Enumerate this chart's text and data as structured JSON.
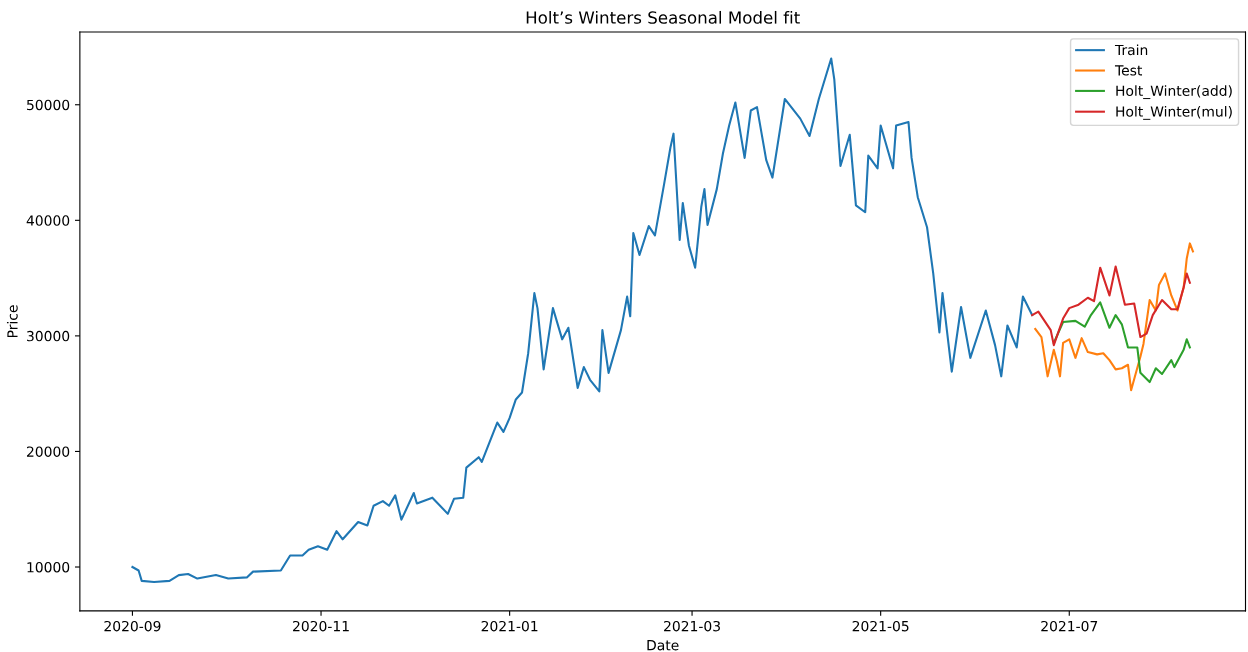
{
  "chart_data": {
    "type": "line",
    "title": "Holt’s Winters Seasonal Model fit",
    "xlabel": "Date",
    "ylabel": "Price",
    "xlim": [
      "2020-08-15",
      "2021-08-27"
    ],
    "ylim": [
      6200,
      56300
    ],
    "xticks": [
      "2020-09",
      "2020-11",
      "2021-01",
      "2021-03",
      "2021-05",
      "2021-07"
    ],
    "yticks": [
      10000,
      20000,
      30000,
      40000,
      50000
    ],
    "legend": "top right",
    "grid": false,
    "series": [
      {
        "name": "Train",
        "color": "#1f77b4",
        "x": [
          "2020-09-01",
          "2020-09-03",
          "2020-09-04",
          "2020-09-08",
          "2020-09-13",
          "2020-09-16",
          "2020-09-19",
          "2020-09-22",
          "2020-09-28",
          "2020-10-02",
          "2020-10-08",
          "2020-10-10",
          "2020-10-19",
          "2020-10-22",
          "2020-10-26",
          "2020-10-28",
          "2020-10-31",
          "2020-11-03",
          "2020-11-06",
          "2020-11-08",
          "2020-11-13",
          "2020-11-16",
          "2020-11-18",
          "2020-11-21",
          "2020-11-23",
          "2020-11-25",
          "2020-11-27",
          "2020-12-01",
          "2020-12-02",
          "2020-12-07",
          "2020-12-12",
          "2020-12-14",
          "2020-12-17",
          "2020-12-18",
          "2020-12-22",
          "2020-12-23",
          "2020-12-28",
          "2020-12-30",
          "2021-01-01",
          "2021-01-03",
          "2021-01-05",
          "2021-01-07",
          "2021-01-09",
          "2021-01-10",
          "2021-01-12",
          "2021-01-15",
          "2021-01-18",
          "2021-01-20",
          "2021-01-23",
          "2021-01-25",
          "2021-01-27",
          "2021-01-30",
          "2021-01-31",
          "2021-02-02",
          "2021-02-06",
          "2021-02-08",
          "2021-02-09",
          "2021-02-10",
          "2021-02-12",
          "2021-02-15",
          "2021-02-17",
          "2021-02-20",
          "2021-02-22",
          "2021-02-23",
          "2021-02-25",
          "2021-02-26",
          "2021-02-28",
          "2021-03-02",
          "2021-03-04",
          "2021-03-05",
          "2021-03-06",
          "2021-03-09",
          "2021-03-11",
          "2021-03-13",
          "2021-03-15",
          "2021-03-18",
          "2021-03-20",
          "2021-03-22",
          "2021-03-25",
          "2021-03-27",
          "2021-03-31",
          "2021-04-05",
          "2021-04-08",
          "2021-04-11",
          "2021-04-15",
          "2021-04-16",
          "2021-04-18",
          "2021-04-21",
          "2021-04-23",
          "2021-04-26",
          "2021-04-27",
          "2021-04-30",
          "2021-05-01",
          "2021-05-05",
          "2021-05-06",
          "2021-05-10",
          "2021-05-11",
          "2021-05-13",
          "2021-05-16",
          "2021-05-18",
          "2021-05-20",
          "2021-05-21",
          "2021-05-24",
          "2021-05-27",
          "2021-05-30",
          "2021-06-04",
          "2021-06-07",
          "2021-06-09",
          "2021-06-11",
          "2021-06-14",
          "2021-06-16",
          "2021-06-19"
        ],
        "values": [
          10000,
          9700,
          8800,
          8700,
          8800,
          9300,
          9400,
          9000,
          9300,
          9000,
          9100,
          9600,
          9700,
          11000,
          11000,
          11500,
          11800,
          11500,
          13100,
          12400,
          13900,
          13600,
          15300,
          15700,
          15300,
          16200,
          14100,
          16400,
          15500,
          16000,
          14600,
          15900,
          16000,
          18600,
          19500,
          19100,
          22500,
          21700,
          22900,
          24500,
          25100,
          28500,
          33700,
          32400,
          27100,
          32400,
          29700,
          30700,
          25500,
          27300,
          26200,
          25200,
          30500,
          26800,
          30500,
          33400,
          31700,
          38900,
          37000,
          39500,
          38700,
          43200,
          46300,
          47500,
          38300,
          41500,
          37800,
          35900,
          41200,
          42700,
          39600,
          42700,
          45800,
          48200,
          50200,
          45400,
          49500,
          49800,
          45200,
          43700,
          50500,
          48800,
          47300,
          50500,
          54000,
          52200,
          44700,
          47400,
          41300,
          40700,
          45600,
          44500,
          48200,
          44500,
          48200,
          48500,
          45400,
          42000,
          39400,
          35400,
          30300,
          33700,
          26900,
          32500,
          28100,
          32200,
          29200,
          26500,
          30900,
          29000,
          33400,
          31800
        ]
      },
      {
        "name": "Test",
        "color": "#ff7f0e",
        "x": [
          "2021-06-20",
          "2021-06-22",
          "2021-06-24",
          "2021-06-26",
          "2021-06-27",
          "2021-06-28",
          "2021-06-29",
          "2021-07-01",
          "2021-07-03",
          "2021-07-05",
          "2021-07-07",
          "2021-07-10",
          "2021-07-12",
          "2021-07-14",
          "2021-07-16",
          "2021-07-18",
          "2021-07-20",
          "2021-07-21",
          "2021-07-24",
          "2021-07-25",
          "2021-07-27",
          "2021-07-29",
          "2021-07-30",
          "2021-08-01",
          "2021-08-03",
          "2021-08-05",
          "2021-08-07",
          "2021-08-08",
          "2021-08-09",
          "2021-08-10"
        ],
        "values": [
          30600,
          29900,
          26500,
          28800,
          27800,
          26500,
          29400,
          29700,
          28100,
          29800,
          28600,
          28400,
          28500,
          27900,
          27100,
          27200,
          27500,
          25300,
          28200,
          29300,
          33100,
          32200,
          34400,
          35400,
          33500,
          32200,
          34200,
          36700,
          38000,
          37300
        ]
      },
      {
        "name": "Holt_Winter(add)",
        "color": "#2ca02c",
        "x": [
          "2021-06-26",
          "2021-06-29",
          "2021-07-03",
          "2021-07-06",
          "2021-07-08",
          "2021-07-11",
          "2021-07-14",
          "2021-07-16",
          "2021-07-18",
          "2021-07-20",
          "2021-07-23",
          "2021-07-24",
          "2021-07-27",
          "2021-07-29",
          "2021-07-31",
          "2021-08-03",
          "2021-08-04",
          "2021-08-07",
          "2021-08-08",
          "2021-08-09"
        ],
        "values": [
          29400,
          31200,
          31300,
          30800,
          31800,
          32900,
          30700,
          31800,
          31000,
          29000,
          29000,
          26800,
          26000,
          27200,
          26700,
          27900,
          27300,
          28800,
          29700,
          29000
        ]
      },
      {
        "name": "Holt_Winter(mul)",
        "color": "#d62728",
        "x": [
          "2021-06-19",
          "2021-06-21",
          "2021-06-25",
          "2021-06-26",
          "2021-06-29",
          "2021-07-01",
          "2021-07-04",
          "2021-07-07",
          "2021-07-09",
          "2021-07-11",
          "2021-07-14",
          "2021-07-16",
          "2021-07-19",
          "2021-07-22",
          "2021-07-24",
          "2021-07-26",
          "2021-07-28",
          "2021-07-31",
          "2021-08-03",
          "2021-08-05",
          "2021-08-07",
          "2021-08-08",
          "2021-08-09"
        ],
        "values": [
          31800,
          32100,
          30500,
          29200,
          31500,
          32400,
          32700,
          33300,
          33000,
          35900,
          33500,
          36000,
          32700,
          32800,
          29900,
          30200,
          31800,
          33100,
          32300,
          32300,
          34200,
          35400,
          34600
        ]
      }
    ]
  }
}
